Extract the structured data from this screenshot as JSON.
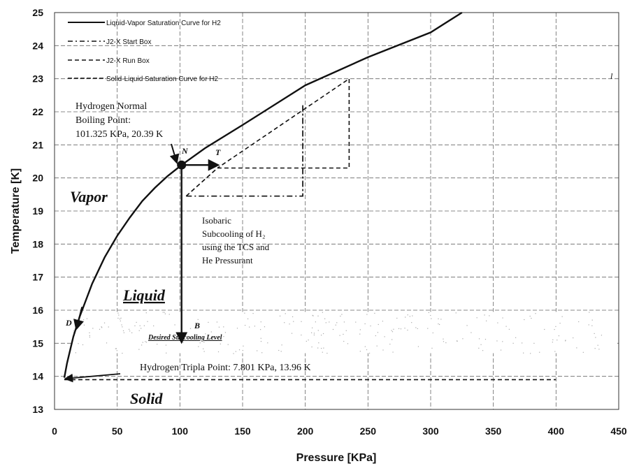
{
  "chart_data": {
    "type": "line",
    "xlabel": "Pressure [KPa]",
    "ylabel": "Temperature [K]",
    "xlim": [
      0,
      450
    ],
    "ylim": [
      13,
      25
    ],
    "x_ticks": [
      "0",
      "50",
      "100",
      "150",
      "200",
      "250",
      "300",
      "350",
      "400",
      "450"
    ],
    "y_ticks": [
      "13",
      "14",
      "15",
      "16",
      "17",
      "18",
      "19",
      "20",
      "21",
      "22",
      "23",
      "24",
      "25"
    ],
    "grid": "dashed",
    "legend_position": "top-left",
    "series": [
      {
        "name": "Liquid-Vapor Saturation Curve for H2",
        "style": "solid",
        "x": [
          7.8,
          10,
          15,
          20,
          30,
          40,
          50,
          60,
          70,
          80,
          90,
          101.3,
          120,
          150,
          200,
          250,
          300,
          325
        ],
        "y": [
          13.96,
          14.4,
          15.2,
          15.8,
          16.8,
          17.6,
          18.25,
          18.8,
          19.3,
          19.7,
          20.05,
          20.39,
          20.9,
          21.6,
          22.8,
          23.65,
          24.4,
          25.0
        ]
      },
      {
        "name": "J2-X Start Box",
        "style": "dash-dot",
        "x": [
          105,
          105,
          198,
          198
        ],
        "y": [
          19.45,
          19.45,
          19.45,
          22.2
        ]
      },
      {
        "name": "J2-X Run Box",
        "style": "dashed",
        "x": [
          105,
          130,
          235,
          235,
          130
        ],
        "y": [
          19.45,
          20.3,
          20.3,
          23.0,
          20.3
        ]
      },
      {
        "name": "Solid-Liquid Saturation Curve for H2",
        "style": "dashed",
        "x": [
          7.8,
          400
        ],
        "y": [
          13.9,
          13.9
        ]
      }
    ],
    "points": [
      {
        "label": "N",
        "x": 101.325,
        "y": 20.39
      },
      {
        "label": "T",
        "x": 130,
        "y": 20.39
      },
      {
        "label": "B",
        "x": 101.325,
        "y": 15.5
      },
      {
        "label": "D",
        "x": 15,
        "y": 15.5
      }
    ]
  },
  "legend": {
    "items": [
      {
        "label": "Liquid-Vapor Saturation Curve for H2",
        "style": "solid"
      },
      {
        "label": "J2-X Start Box",
        "style": "dash-dot"
      },
      {
        "label": "J2-X Run Box",
        "style": "dashed"
      },
      {
        "label": "Solid-Liquid Saturation Curve for H2",
        "style": "dashed"
      }
    ]
  },
  "annotations": {
    "nbp_line1": "Hydrogen Normal",
    "nbp_line2": "Boiling Point:",
    "nbp_line3": "101.325 KPa, 20.39 K",
    "subcool_line1": "Isobaric",
    "subcool_line2": "Subcooling of H₂",
    "subcool_line3": "using the TCS and",
    "subcool_line4": "He Pressurant",
    "triple_point": "Hydrogen Tripla Point: 7.801 KPa, 13.96 K",
    "desired_level": "Desired Subcooling Level",
    "region_vapor": "Vapor",
    "region_liquid": "Liquid",
    "region_solid": "Solid",
    "point_n": "N",
    "point_t": "T",
    "point_b": "B",
    "point_d": "D",
    "edge_mark": "l"
  },
  "colors": {
    "line": "#111111",
    "grid": "#555555",
    "background": "#ffffff"
  }
}
